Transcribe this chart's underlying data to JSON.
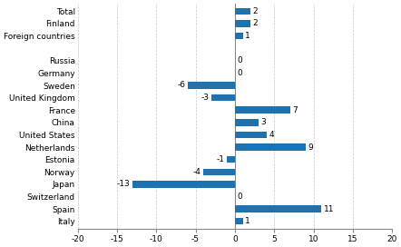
{
  "categories": [
    "Total",
    "Finland",
    "Foreign countries",
    "",
    "Russia",
    "Germany",
    "Sweden",
    "United Kingdom",
    "France",
    "China",
    "United States",
    "Netherlands",
    "Estonia",
    "Norway",
    "Japan",
    "Switzerland",
    "Spain",
    "Italy"
  ],
  "values": [
    2,
    2,
    1,
    null,
    0,
    0,
    -6,
    -3,
    7,
    3,
    4,
    9,
    -1,
    -4,
    -13,
    0,
    11,
    1
  ],
  "bar_color": "#1e72b0",
  "xlim": [
    -20,
    20
  ],
  "xticks": [
    -20,
    -15,
    -10,
    -5,
    0,
    5,
    10,
    15,
    20
  ],
  "label_fontsize": 6.5,
  "value_fontsize": 6.5,
  "background_color": "#ffffff",
  "bar_height": 0.55
}
